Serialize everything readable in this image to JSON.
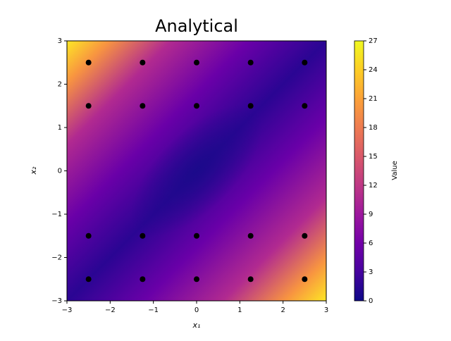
{
  "chart_data": {
    "type": "scatter",
    "title": "Analytical",
    "x_label": "x₁",
    "y_label": "x₂",
    "xlim": [
      -3,
      3
    ],
    "ylim": [
      -3,
      3
    ],
    "xticks": [
      {
        "value": -3,
        "label": "−3"
      },
      {
        "value": -2,
        "label": "−2"
      },
      {
        "value": -1,
        "label": "−1"
      },
      0,
      1,
      2,
      3
    ],
    "yticks": [
      {
        "value": -3,
        "label": "−3"
      },
      {
        "value": -2,
        "label": "−2"
      },
      {
        "value": -1,
        "label": "−1"
      },
      0,
      1,
      2,
      3
    ],
    "series": [
      {
        "color": "#000000",
        "x": [
          -2.5,
          -1.25,
          0,
          1.25,
          2.5,
          -2.5,
          -1.25,
          0,
          1.25,
          2.5,
          -2.5,
          -1.25,
          0,
          1.25,
          2.5,
          -2.5,
          -1.25,
          0,
          1.25,
          2.5
        ],
        "y": [
          2.5,
          2.5,
          2.5,
          2.5,
          2.5,
          1.5,
          1.5,
          1.5,
          1.5,
          1.5,
          -1.5,
          -1.5,
          -1.5,
          -1.5,
          -1.5,
          -2.5,
          -2.5,
          -2.5,
          -2.5,
          -2.5
        ]
      }
    ],
    "colorbar": {
      "label": "Value",
      "lim": [
        0,
        27
      ],
      "ticks": [
        0,
        3,
        6,
        9,
        12,
        15,
        18,
        21,
        24,
        27
      ]
    }
  }
}
